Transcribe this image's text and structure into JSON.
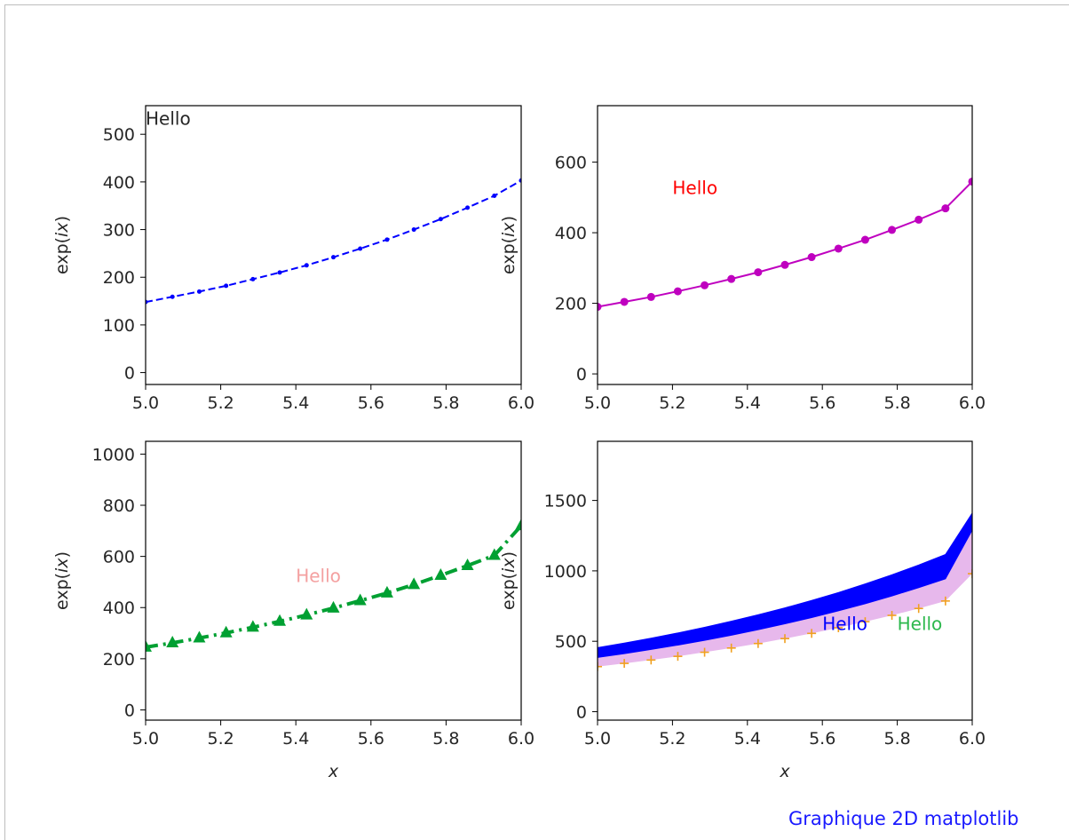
{
  "caption": "Graphique 2D matplotlib",
  "chart_data": [
    {
      "type": "line",
      "xlim": [
        5.0,
        6.0
      ],
      "ylim": [
        -25,
        560
      ],
      "xticks": [
        "5.0",
        "5.2",
        "5.4",
        "5.6",
        "5.8",
        "6.0"
      ],
      "yticks": [
        "0",
        "100",
        "200",
        "300",
        "400",
        "500"
      ],
      "ylabel": "exp(ix)",
      "xlabel": "",
      "x": [
        5.0,
        5.0714,
        5.1429,
        5.2143,
        5.2857,
        5.3571,
        5.4286,
        5.5,
        5.5714,
        5.6429,
        5.7143,
        5.7857,
        5.8571,
        5.9286,
        6.0
      ],
      "series": [
        {
          "style": "dashed",
          "marker": "dot",
          "color": "#0000ff",
          "values": [
            148,
            159,
            170,
            182,
            196,
            210,
            225,
            242,
            260,
            279,
            300,
            322,
            346,
            371,
            403
          ]
        }
      ],
      "annotations": [
        {
          "text": "Hello",
          "x": 5.0,
          "y": 520,
          "color": "#262626"
        }
      ],
      "grid": false
    },
    {
      "type": "line",
      "xlim": [
        5.0,
        6.0
      ],
      "ylim": [
        -30,
        760
      ],
      "xticks": [
        "5.0",
        "5.2",
        "5.4",
        "5.6",
        "5.8",
        "6.0"
      ],
      "yticks": [
        "0",
        "200",
        "400",
        "600"
      ],
      "ylabel": "exp(ix)",
      "xlabel": "",
      "x": [
        5.0,
        5.0714,
        5.1429,
        5.2143,
        5.2857,
        5.3571,
        5.4286,
        5.5,
        5.5714,
        5.6429,
        5.7143,
        5.7857,
        5.8571,
        5.9286,
        6.0
      ],
      "series": [
        {
          "style": "solid",
          "marker": "circle",
          "color": "#bf00bf",
          "values": [
            190,
            204,
            218,
            234,
            251,
            269,
            288,
            309,
            331,
            355,
            380,
            408,
            437,
            469,
            545
          ]
        }
      ],
      "annotations": [
        {
          "text": "Hello",
          "x": 5.2,
          "y": 510,
          "color": "#ff0000"
        }
      ],
      "grid": false
    },
    {
      "type": "line",
      "xlim": [
        5.0,
        6.0
      ],
      "ylim": [
        -40,
        1050
      ],
      "xticks": [
        "5.0",
        "5.2",
        "5.4",
        "5.6",
        "5.8",
        "6.0"
      ],
      "yticks": [
        "0",
        "200",
        "400",
        "600",
        "800",
        "1000"
      ],
      "ylabel": "exp(ix)",
      "xlabel": "x",
      "x": [
        5.0,
        5.0714,
        5.1429,
        5.2143,
        5.2857,
        5.3571,
        5.4286,
        5.5,
        5.5714,
        5.6429,
        5.7143,
        5.7857,
        5.8571,
        5.9286,
        6.0
      ],
      "series": [
        {
          "style": "dashdot",
          "marker": "triangle",
          "color": "#00a032",
          "values": [
            245,
            262,
            281,
            301,
            323,
            346,
            371,
            398,
            427,
            457,
            490,
            526,
            564,
            604,
            720
          ]
        }
      ],
      "annotations": [
        {
          "text": "Hello",
          "x": 5.4,
          "y": 500,
          "color": "#f4a0a0"
        }
      ],
      "grid": false
    },
    {
      "type": "area",
      "xlim": [
        5.0,
        6.0
      ],
      "ylim": [
        -60,
        1920
      ],
      "xticks": [
        "5.0",
        "5.2",
        "5.4",
        "5.6",
        "5.8",
        "6.0"
      ],
      "yticks": [
        "0",
        "500",
        "1000",
        "1500"
      ],
      "ylabel": "exp(ix)",
      "xlabel": "x",
      "x": [
        5.0,
        5.0714,
        5.1429,
        5.2143,
        5.2857,
        5.3571,
        5.4286,
        5.5,
        5.5714,
        5.6429,
        5.7143,
        5.7857,
        5.8571,
        5.9286,
        6.0
      ],
      "series": [
        {
          "style": "solid",
          "marker": "none",
          "color": "#0000ff",
          "kind": "band",
          "upper": [
            455,
            487,
            522,
            559,
            599,
            642,
            688,
            737,
            790,
            846,
            907,
            972,
            1041,
            1116,
            1410
          ],
          "lower": [
            385,
            412,
            442,
            473,
            507,
            543,
            582,
            624,
            668,
            716,
            767,
            822,
            881,
            944,
            1290
          ]
        },
        {
          "style": "none",
          "marker": "plus",
          "color": "#f0a020",
          "values": [
            320,
            343,
            367,
            393,
            422,
            452,
            484,
            519,
            556,
            596,
            639,
            684,
            733,
            786,
            980
          ]
        }
      ],
      "fill_between": {
        "color": "#e7b8ec",
        "upper_series": 0,
        "lower_series": 1
      },
      "annotations": [
        {
          "text": "Hello",
          "x": 5.6,
          "y": 580,
          "color": "#0000ff"
        },
        {
          "text": "Hello",
          "x": 5.8,
          "y": 580,
          "color": "#2db84d"
        }
      ],
      "grid": false
    }
  ]
}
